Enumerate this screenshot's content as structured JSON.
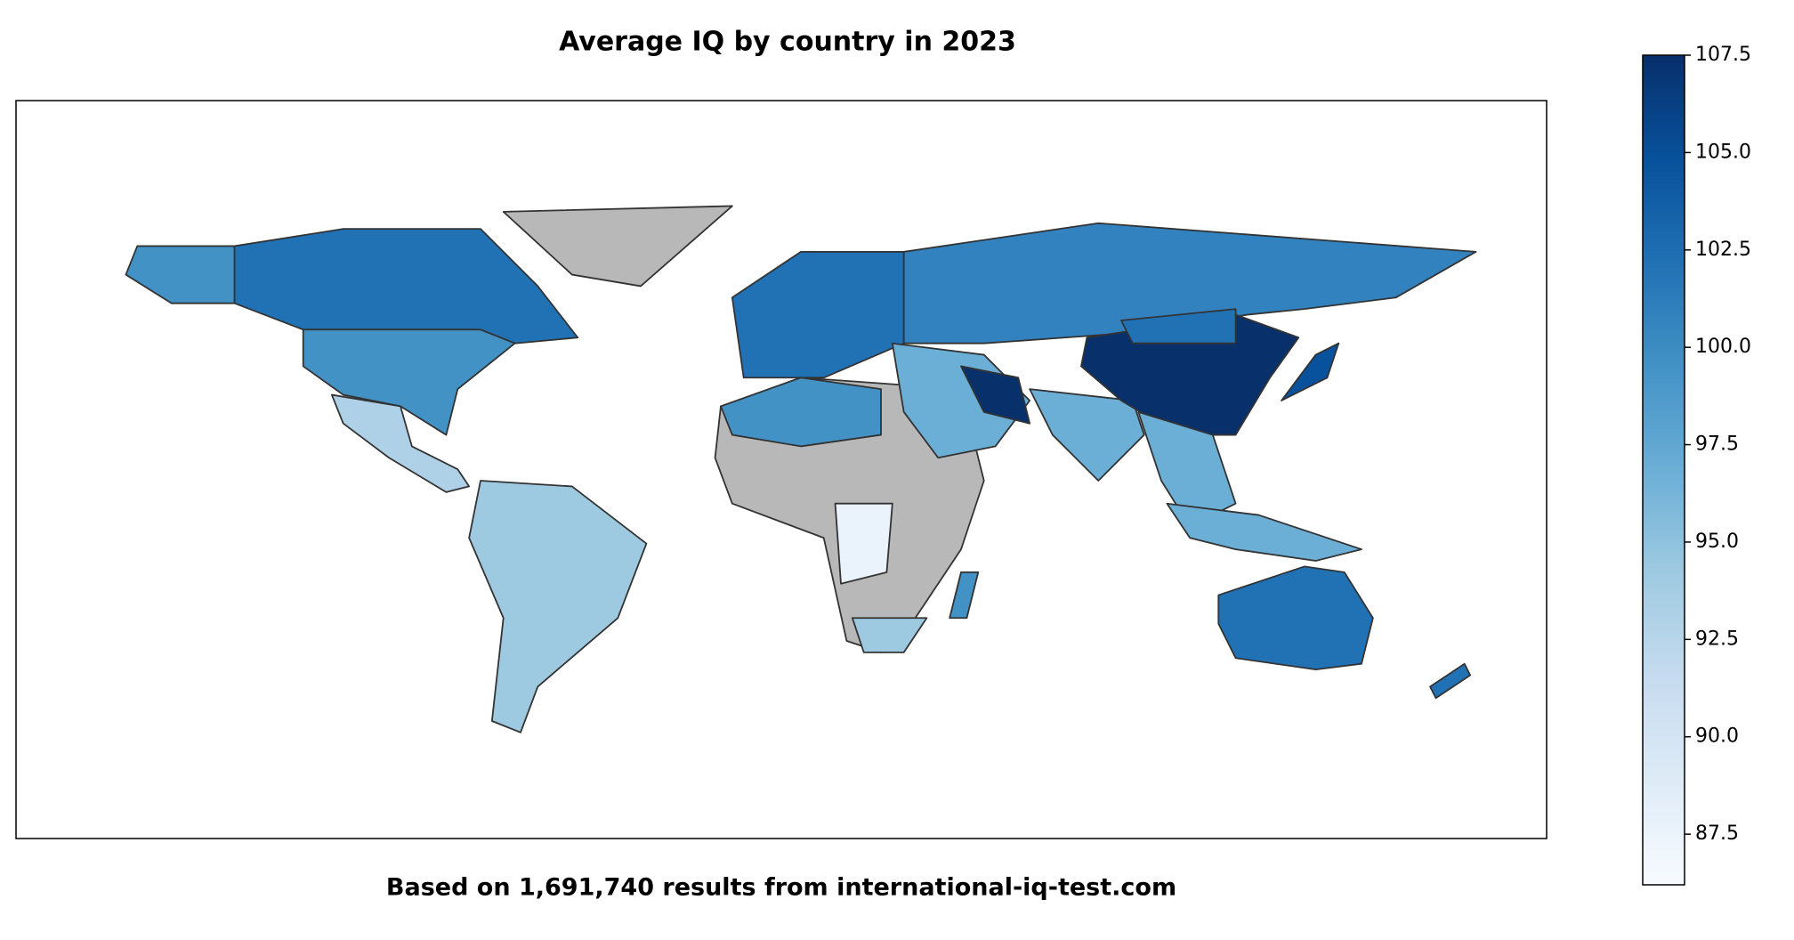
{
  "chart_data": {
    "type": "choropleth",
    "title": "Average IQ by country in 2023",
    "caption": "Based on 1,691,740 results from international-iq-test.com",
    "colorbar": {
      "lim": [
        86.2,
        107.5
      ],
      "ticks": [
        87.5,
        {
          "value": 90,
          "label": "90.0"
        },
        92.5,
        {
          "value": 95,
          "label": "95.0"
        },
        97.5,
        {
          "value": 100,
          "label": "100.0"
        },
        102.5,
        {
          "value": 105,
          "label": "105.0"
        },
        107.5
      ],
      "colors": [
        "#f7fbff",
        "#deebf7",
        "#c6dbef",
        "#9ecae1",
        "#6baed6",
        "#4292c6",
        "#2171b5",
        "#08519c",
        "#08306b"
      ]
    }
  }
}
